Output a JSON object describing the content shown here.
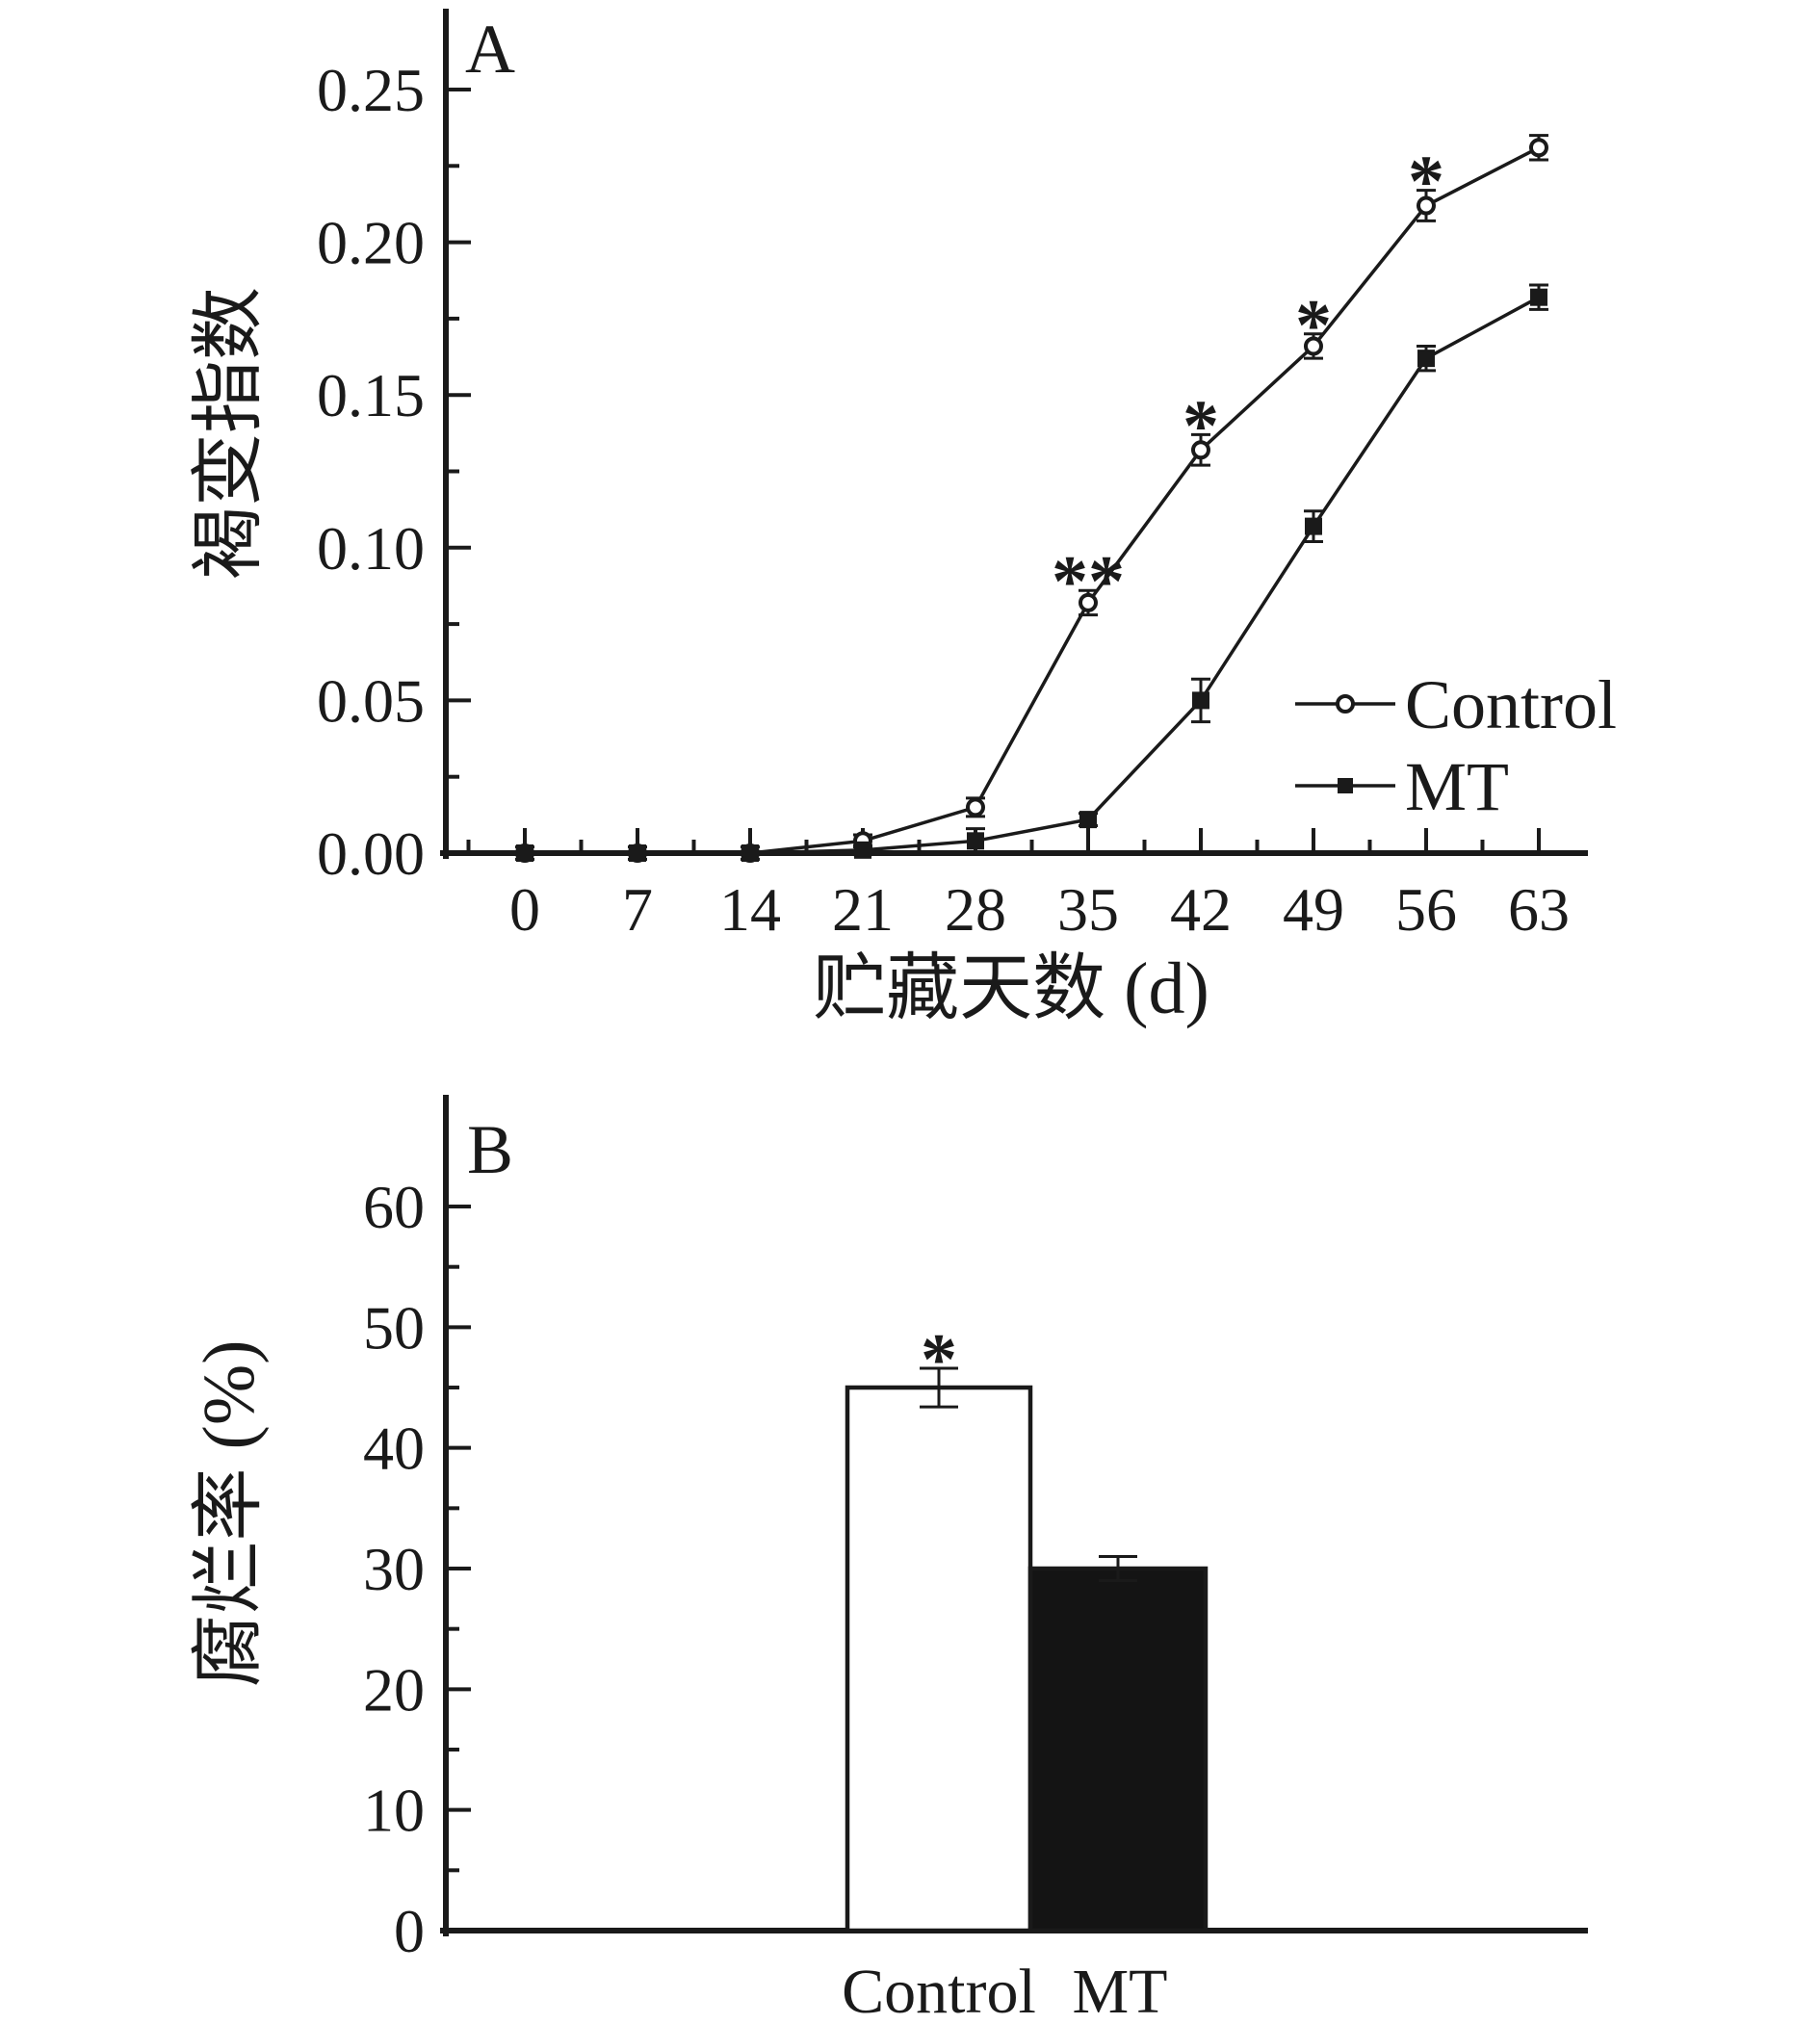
{
  "figure": {
    "background": "#ffffff",
    "ink_color": "#1a1a1a"
  },
  "chart_data": [
    {
      "type": "line",
      "panel_label": "A",
      "xlabel": "贮藏天数 (d)",
      "ylabel": "褐变指数",
      "x": [
        0,
        7,
        14,
        21,
        28,
        35,
        42,
        49,
        56,
        63
      ],
      "xlim": [
        -5,
        66
      ],
      "ylim": [
        0,
        0.25
      ],
      "ytick_step": 0.05,
      "ytick_labels": [
        "0.00",
        "0.05",
        "0.10",
        "0.15",
        "0.20",
        "0.25"
      ],
      "y_minor_step": 0.025,
      "x_minor_interval": 3.5,
      "grid": false,
      "legend_position": "right-middle",
      "series": [
        {
          "name": "Control",
          "marker": "open-circle",
          "values": [
            0.0,
            0.0,
            0.0,
            0.004,
            0.015,
            0.082,
            0.132,
            0.166,
            0.212,
            0.231
          ],
          "errors": [
            0.002,
            0.002,
            0.002,
            0.002,
            0.003,
            0.004,
            0.005,
            0.004,
            0.005,
            0.004
          ],
          "annotations": [
            "",
            "",
            "",
            "",
            "",
            "**",
            "*",
            "*",
            "*",
            ""
          ]
        },
        {
          "name": "MT",
          "marker": "filled-square",
          "values": [
            0.0,
            0.0,
            0.0,
            0.001,
            0.004,
            0.011,
            0.05,
            0.107,
            0.162,
            0.182
          ],
          "errors": [
            0.002,
            0.002,
            0.002,
            0.0015,
            0.004,
            0.002,
            0.007,
            0.005,
            0.004,
            0.004
          ],
          "annotations": [
            "",
            "",
            "",
            "",
            "",
            "",
            "",
            "",
            "",
            ""
          ]
        }
      ]
    },
    {
      "type": "bar",
      "panel_label": "B",
      "ylabel": "腐烂率 (%)",
      "categories": [
        "Control",
        "MT"
      ],
      "values": [
        45,
        30
      ],
      "errors": [
        1.6,
        1.0
      ],
      "annotations": [
        "*",
        ""
      ],
      "bar_fills": [
        "#ffffff",
        "#141414"
      ],
      "ylim": [
        0,
        68
      ],
      "ytick_step": 10,
      "ytick_labels": [
        "0",
        "10",
        "20",
        "30",
        "40",
        "50",
        "60"
      ],
      "y_minor_step": 5,
      "grid": false
    }
  ]
}
